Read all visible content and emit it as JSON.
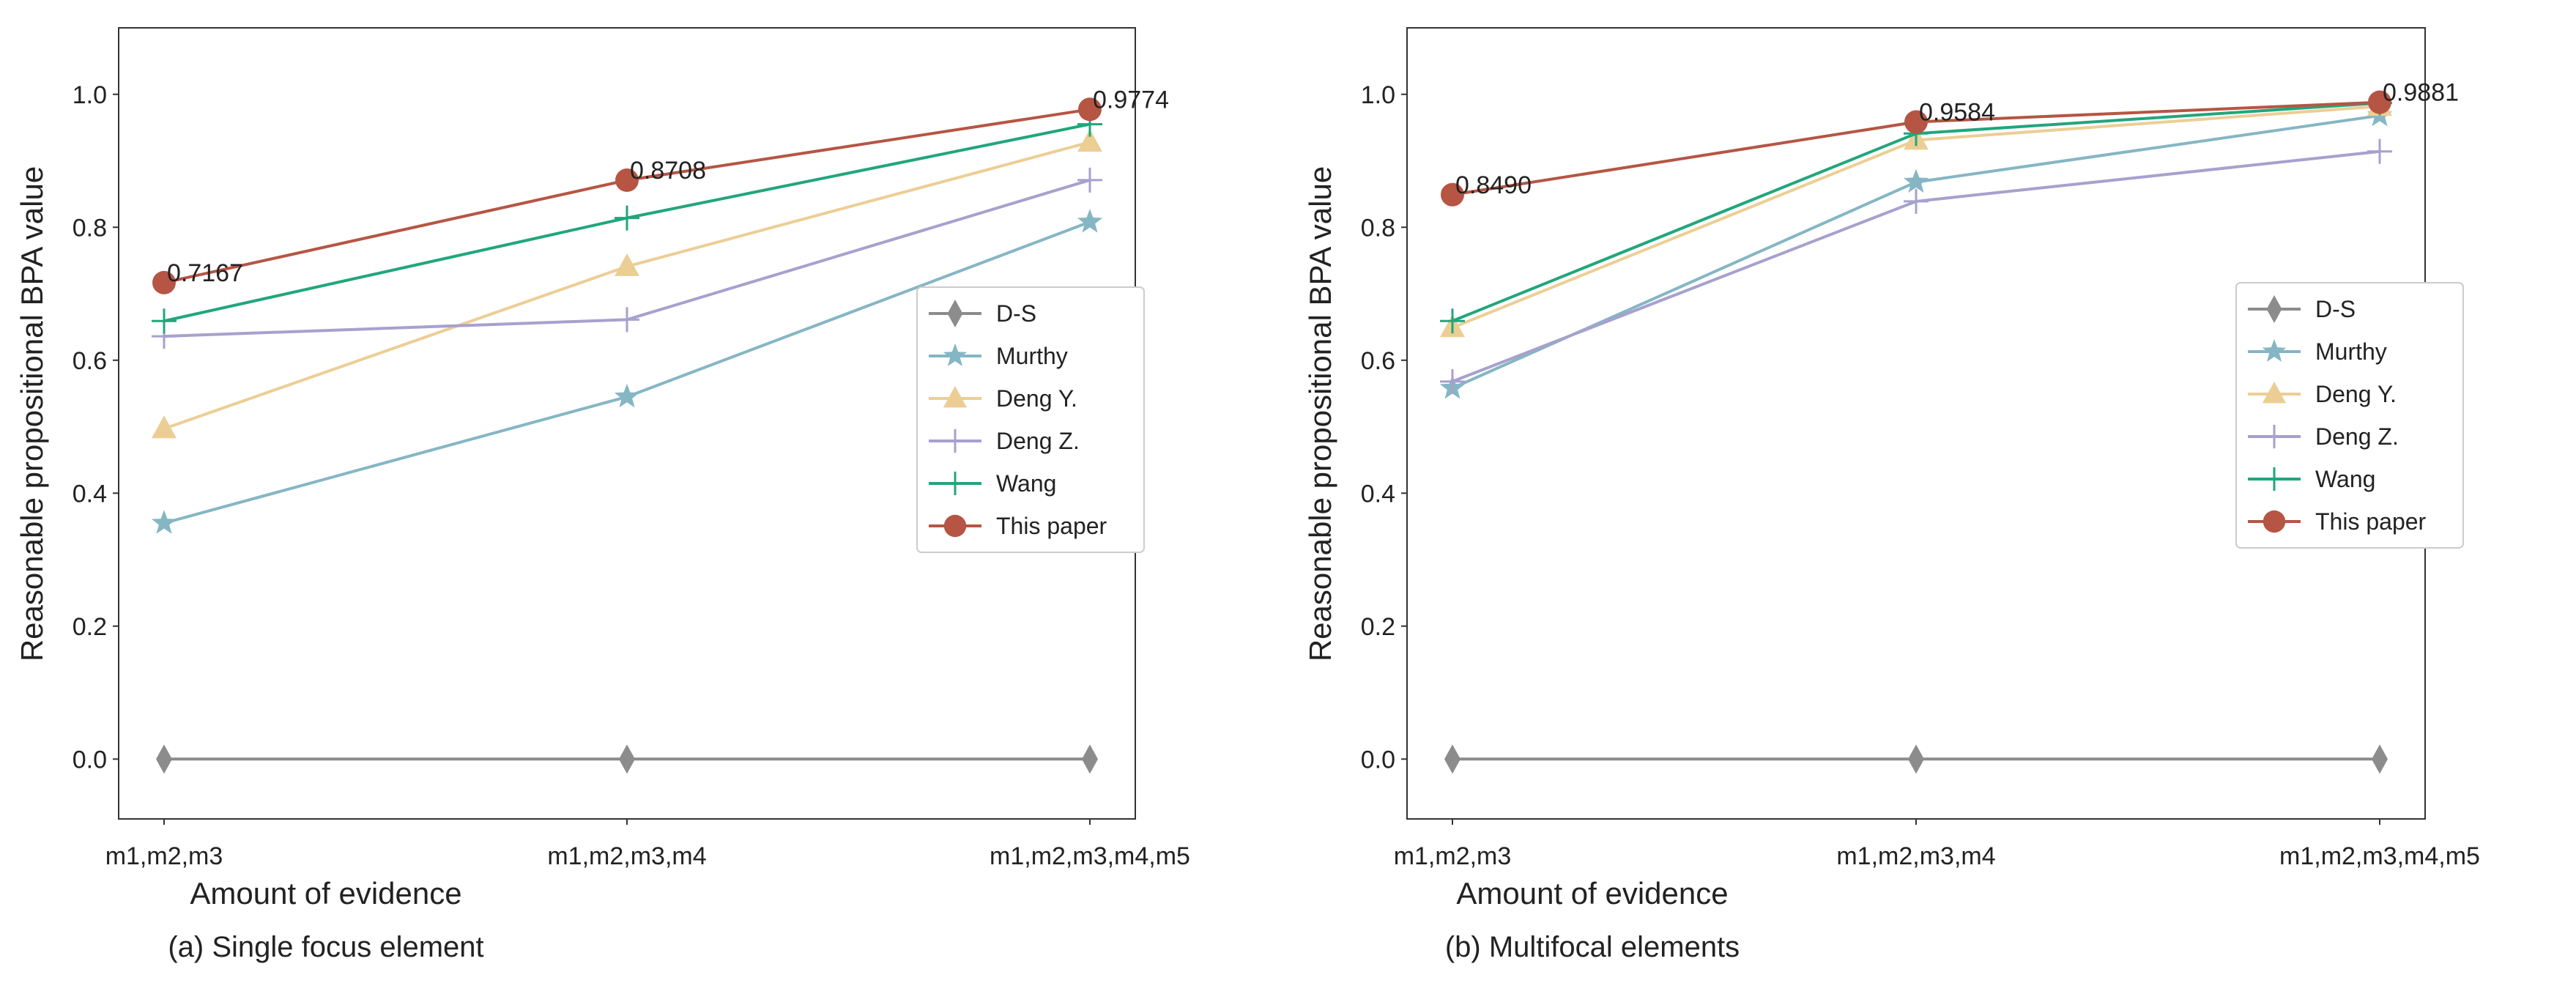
{
  "chart_data": [
    {
      "type": "line",
      "caption": "(a) Single focus element",
      "xlabel": "Amount of evidence",
      "ylabel": "Reasonable propositional BPA value",
      "categories": [
        "m1,m2,m3",
        "m1,m2,m3,m4",
        "m1,m2,m3,m4,m5"
      ],
      "ylim": [
        -0.09,
        1.1
      ],
      "yticks": [
        "0.0",
        "0.2",
        "0.4",
        "0.6",
        "0.8",
        "1.0"
      ],
      "legend_position": "center-right",
      "series": [
        {
          "name": "D-S",
          "values": [
            0.0,
            0.0,
            0.0
          ],
          "color": "#8c8c8c",
          "marker": "diamond"
        },
        {
          "name": "Murthy",
          "values": [
            0.355,
            0.545,
            0.808
          ],
          "color": "#85b6c4",
          "marker": "star"
        },
        {
          "name": "Deng Y.",
          "values": [
            0.497,
            0.741,
            0.928
          ],
          "color": "#ecce95",
          "marker": "triangle"
        },
        {
          "name": "Deng Z.",
          "values": [
            0.636,
            0.661,
            0.871
          ],
          "color": "#a6a1cd",
          "marker": "plus"
        },
        {
          "name": "Wang",
          "values": [
            0.659,
            0.814,
            0.955
          ],
          "color": "#21a67c",
          "marker": "plus"
        },
        {
          "name": "This paper",
          "values": [
            0.7167,
            0.8708,
            0.9774
          ],
          "color": "#b65544",
          "marker": "circle"
        }
      ],
      "annotations": [
        "0.7167",
        "0.8708",
        "0.9774"
      ]
    },
    {
      "type": "line",
      "caption": "(b) Multifocal elements",
      "xlabel": "Amount of evidence",
      "ylabel": "Reasonable propositional BPA value",
      "categories": [
        "m1,m2,m3",
        "m1,m2,m3,m4",
        "m1,m2,m3,m4,m5"
      ],
      "ylim": [
        -0.09,
        1.1
      ],
      "yticks": [
        "0.0",
        "0.2",
        "0.4",
        "0.6",
        "0.8",
        "1.0"
      ],
      "legend_position": "center-right",
      "series": [
        {
          "name": "D-S",
          "values": [
            0.0,
            0.0,
            0.0
          ],
          "color": "#8c8c8c",
          "marker": "diamond"
        },
        {
          "name": "Murthy",
          "values": [
            0.558,
            0.868,
            0.968
          ],
          "color": "#85b6c4",
          "marker": "star"
        },
        {
          "name": "Deng Y.",
          "values": [
            0.649,
            0.931,
            0.982
          ],
          "color": "#ecce95",
          "marker": "triangle"
        },
        {
          "name": "Deng Z.",
          "values": [
            0.568,
            0.839,
            0.914
          ],
          "color": "#a6a1cd",
          "marker": "plus"
        },
        {
          "name": "Wang",
          "values": [
            0.659,
            0.941,
            0.987
          ],
          "color": "#21a67c",
          "marker": "plus"
        },
        {
          "name": "This paper",
          "values": [
            0.849,
            0.9584,
            0.9881
          ],
          "color": "#b65544",
          "marker": "circle"
        }
      ],
      "annotations": [
        "0.8490",
        "0.9584",
        "0.9881"
      ]
    }
  ]
}
